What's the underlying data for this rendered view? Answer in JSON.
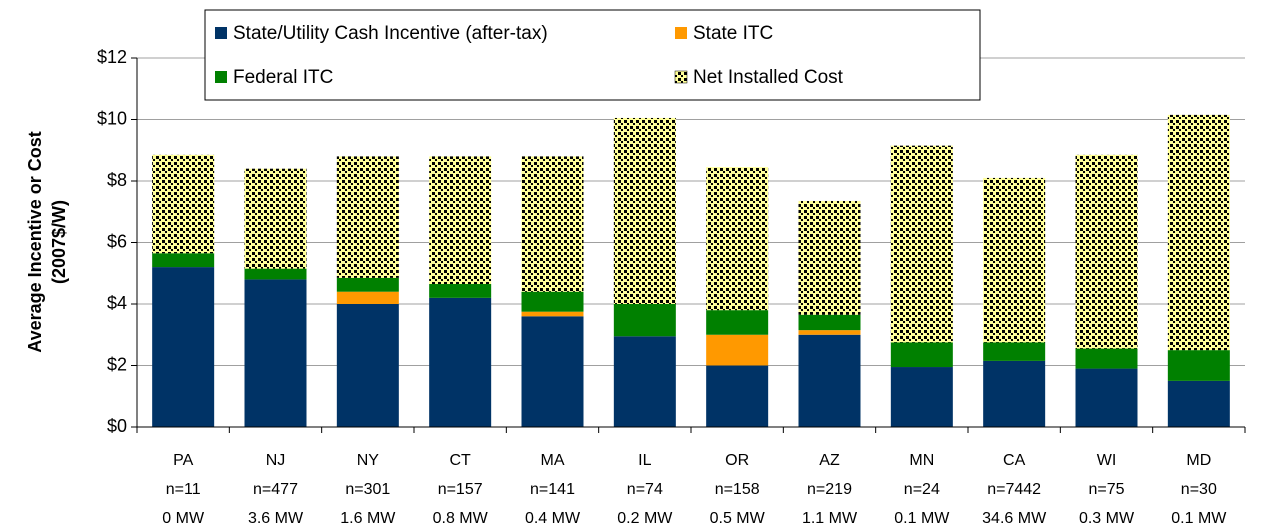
{
  "chart_data": {
    "type": "stacked_bar",
    "y_label": [
      "Average Incentive or Cost",
      "(2007$/W)"
    ],
    "categories": [
      [
        "PA",
        "n=11",
        "0 MW"
      ],
      [
        "NJ",
        "n=477",
        "3.6 MW"
      ],
      [
        "NY",
        "n=301",
        "1.6 MW"
      ],
      [
        "CT",
        "n=157",
        "0.8 MW"
      ],
      [
        "MA",
        "n=141",
        "0.4 MW"
      ],
      [
        "IL",
        "n=74",
        "0.2 MW"
      ],
      [
        "OR",
        "n=158",
        "0.5 MW"
      ],
      [
        "AZ",
        "n=219",
        "1.1 MW"
      ],
      [
        "MN",
        "n=24",
        "0.1 MW"
      ],
      [
        "CA",
        "n=7442",
        "34.6 MW"
      ],
      [
        "WI",
        "n=75",
        "0.3 MW"
      ],
      [
        "MD",
        "n=30",
        "0.1 MW"
      ]
    ],
    "series": [
      {
        "name": "State/Utility Cash Incentive (after-tax)",
        "color": "#003366",
        "values": [
          5.2,
          4.8,
          4.0,
          4.2,
          3.6,
          2.95,
          2.0,
          3.0,
          1.95,
          2.15,
          1.9,
          1.5
        ]
      },
      {
        "name": "State ITC",
        "color": "#ff9900",
        "values": [
          0,
          0,
          0.4,
          0,
          0.15,
          0,
          1.0,
          0.15,
          0,
          0,
          0,
          0
        ]
      },
      {
        "name": "Federal ITC",
        "color": "#008000",
        "values": [
          0.45,
          0.35,
          0.45,
          0.45,
          0.65,
          1.05,
          0.8,
          0.5,
          0.8,
          0.6,
          0.65,
          1.0
        ]
      },
      {
        "name": "Net Installed Cost",
        "color": "#ffff99",
        "pattern": "dots",
        "values": [
          3.2,
          3.25,
          3.95,
          4.15,
          4.4,
          6.05,
          4.65,
          3.7,
          6.4,
          5.35,
          6.3,
          7.65
        ]
      }
    ],
    "ylim": [
      0,
      12
    ],
    "yticks": [
      {
        "value": 0,
        "label": "$0"
      },
      {
        "value": 2,
        "label": "$2"
      },
      {
        "value": 4,
        "label": "$4"
      },
      {
        "value": 6,
        "label": "$6"
      },
      {
        "value": 8,
        "label": "$8"
      },
      {
        "value": 10,
        "label": "$10"
      },
      {
        "value": 12,
        "label": "$12"
      }
    ],
    "grid": true,
    "legend": "top"
  }
}
